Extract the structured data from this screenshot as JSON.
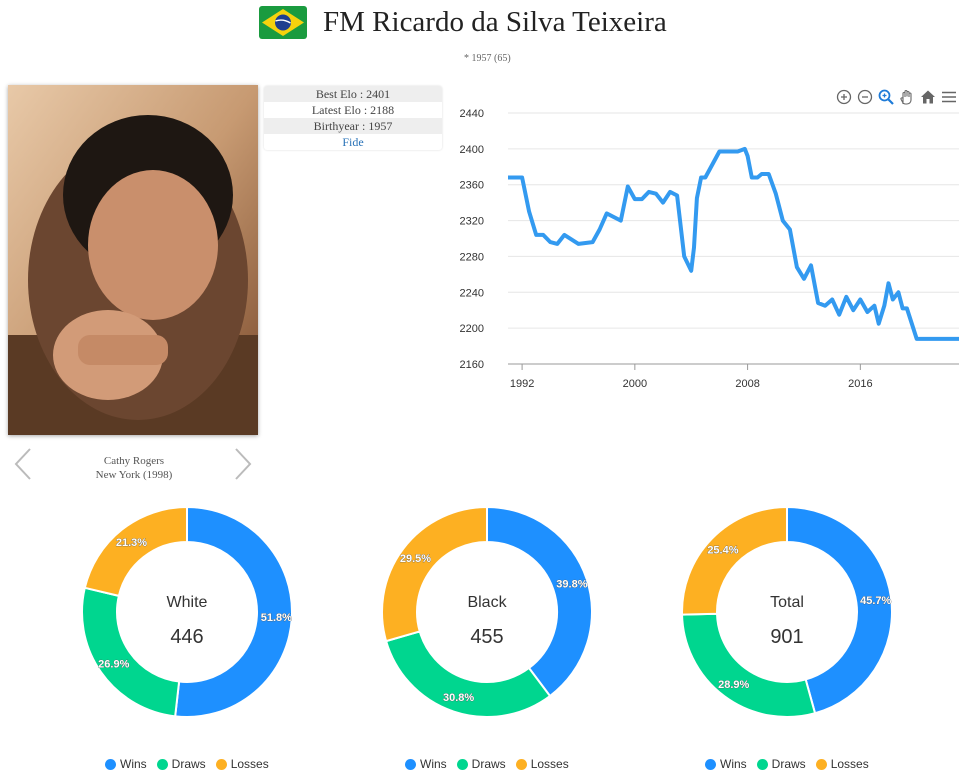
{
  "header": {
    "title": "FM Ricardo da Silva Teixeira",
    "subtitle": "* 1957 (65)",
    "flag_colors": {
      "green": "#1a9b3f",
      "yellow": "#f5d20d",
      "blue": "#1f3f8f"
    }
  },
  "photo": {
    "caption_line1": "Cathy Rogers",
    "caption_line2": "New York (1998)"
  },
  "info": {
    "best_elo": "Best Elo : 2401",
    "latest_elo": "Latest Elo : 2188",
    "birthyear": "Birthyear : 1957",
    "fide_link": "Fide"
  },
  "toolbar": {
    "icons": [
      "zoom-in-icon",
      "zoom-out-icon",
      "selection-zoom-icon",
      "pan-icon",
      "home-icon",
      "menu-icon"
    ]
  },
  "colors": {
    "wins": "#1e90ff",
    "draws": "#00d68f",
    "losses": "#fdb022",
    "line": "#339af0"
  },
  "chart_data": [
    {
      "type": "line",
      "title": "",
      "xlabel": "",
      "ylabel": "",
      "ylim": [
        2160,
        2440
      ],
      "yticks": [
        "2160",
        "2200",
        "2240",
        "2280",
        "2320",
        "2360",
        "2400",
        "2440"
      ],
      "xlim": [
        1991,
        2023
      ],
      "xticks": [
        "1992",
        "2000",
        "2008",
        "2016"
      ],
      "grid": "horizontal",
      "series": [
        {
          "x": [
            1991,
            1992,
            1992.5,
            1993,
            1993.5,
            1994,
            1994.5,
            1995,
            1996,
            1997,
            1997.5,
            1998,
            1998.5,
            1999,
            1999.5,
            2000,
            2000.5,
            2001,
            2001.5,
            2002,
            2002.5,
            2003,
            2003.5,
            2004,
            2004.2,
            2004.4,
            2004.7,
            2005,
            2006,
            2007,
            2007.3,
            2007.8,
            2008,
            2008.3,
            2008.7,
            2009,
            2009.5,
            2010,
            2010.5,
            2011,
            2011.5,
            2012,
            2012.5,
            2013,
            2013.5,
            2014,
            2014.5,
            2015,
            2015.5,
            2016,
            2016.5,
            2017,
            2017.3,
            2017.7,
            2018,
            2018.3,
            2018.7,
            2019,
            2019.3,
            2020,
            2021,
            2022,
            2023
          ],
          "y": [
            2368,
            2368,
            2330,
            2304,
            2304,
            2296,
            2294,
            2304,
            2294,
            2296,
            2310,
            2328,
            2324,
            2320,
            2358,
            2344,
            2344,
            2352,
            2350,
            2340,
            2352,
            2348,
            2280,
            2264,
            2290,
            2345,
            2368,
            2368,
            2397,
            2397,
            2397,
            2400,
            2392,
            2368,
            2368,
            2372,
            2372,
            2350,
            2320,
            2310,
            2268,
            2255,
            2270,
            2228,
            2225,
            2232,
            2215,
            2235,
            2220,
            2232,
            2218,
            2225,
            2205,
            2225,
            2250,
            2232,
            2240,
            2222,
            2222,
            2188,
            2188,
            2188,
            2188
          ]
        }
      ]
    },
    {
      "type": "pie",
      "center_label": "White",
      "center_value": "446",
      "labels": [
        "Wins",
        "Draws",
        "Losses"
      ],
      "values": [
        51.8,
        26.9,
        21.3
      ],
      "value_labels": [
        "51.8%",
        "26.9%",
        "21.3%"
      ]
    },
    {
      "type": "pie",
      "center_label": "Black",
      "center_value": "455",
      "labels": [
        "Wins",
        "Draws",
        "Losses"
      ],
      "values": [
        39.8,
        30.8,
        29.5
      ],
      "value_labels": [
        "39.8%",
        "30.8%",
        "29.5%"
      ]
    },
    {
      "type": "pie",
      "center_label": "Total",
      "center_value": "901",
      "labels": [
        "Wins",
        "Draws",
        "Losses"
      ],
      "values": [
        45.7,
        28.9,
        25.4
      ],
      "value_labels": [
        "45.7%",
        "28.9%",
        "25.4%"
      ]
    }
  ]
}
